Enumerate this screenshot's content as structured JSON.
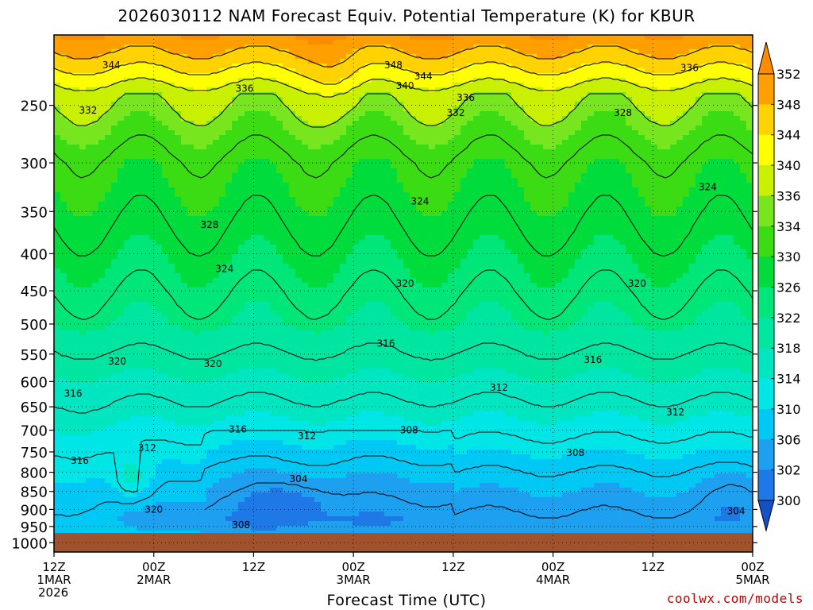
{
  "title": "2026030112 NAM Forecast Equiv. Potential Temperature (K) for KBUR",
  "credit": "coolwx.com/models",
  "chart_data": {
    "type": "heatmap",
    "title": "2026030112 NAM Forecast Equiv. Potential Temperature (K) for KBUR",
    "xlabel": "Forecast Time (UTC)",
    "ylabel": "",
    "x_ticks": [
      {
        "hour": 0,
        "lines": [
          "12Z",
          "1MAR",
          "2026"
        ]
      },
      {
        "hour": 12,
        "lines": [
          "00Z",
          "2MAR"
        ]
      },
      {
        "hour": 24,
        "lines": [
          "12Z"
        ]
      },
      {
        "hour": 36,
        "lines": [
          "00Z",
          "3MAR"
        ]
      },
      {
        "hour": 48,
        "lines": [
          "12Z"
        ]
      },
      {
        "hour": 60,
        "lines": [
          "00Z",
          "4MAR"
        ]
      },
      {
        "hour": 72,
        "lines": [
          "12Z"
        ]
      },
      {
        "hour": 84,
        "lines": [
          "00Z",
          "5MAR"
        ]
      }
    ],
    "xlim": [
      0,
      84
    ],
    "y_ticks": [
      250,
      300,
      350,
      400,
      450,
      500,
      550,
      600,
      650,
      700,
      750,
      800,
      850,
      900,
      950,
      1000
    ],
    "ylim": [
      200,
      1030
    ],
    "y_scale": "log",
    "grid": true,
    "surface_pressure_hpa": 970,
    "colorbar": {
      "ticks": [
        300,
        302,
        306,
        310,
        314,
        318,
        322,
        326,
        330,
        334,
        336,
        340,
        344,
        348,
        352
      ],
      "bins": [
        {
          "min": 298,
          "max": 302,
          "color": "#1e78e6"
        },
        {
          "min": 302,
          "max": 306,
          "color": "#1ea0f0"
        },
        {
          "min": 306,
          "max": 310,
          "color": "#00c8f5"
        },
        {
          "min": 310,
          "max": 314,
          "color": "#00e6e6"
        },
        {
          "min": 314,
          "max": 318,
          "color": "#00e6c0"
        },
        {
          "min": 318,
          "max": 322,
          "color": "#00e6a0"
        },
        {
          "min": 322,
          "max": 326,
          "color": "#00e678"
        },
        {
          "min": 326,
          "max": 330,
          "color": "#00dc3c"
        },
        {
          "min": 330,
          "max": 334,
          "color": "#3cdc14"
        },
        {
          "min": 334,
          "max": 336,
          "color": "#78e61e"
        },
        {
          "min": 336,
          "max": 340,
          "color": "#c8f000"
        },
        {
          "min": 340,
          "max": 344,
          "color": "#ffff00"
        },
        {
          "min": 344,
          "max": 348,
          "color": "#ffd200"
        },
        {
          "min": 348,
          "max": 352,
          "color": "#ffa000"
        }
      ],
      "below_color": "#1450c8",
      "above_color": "#ff8c00"
    },
    "contour_levels_k": [
      304,
      308,
      312,
      316,
      320,
      324,
      328,
      332,
      336,
      340,
      344,
      348
    ],
    "contour_labels": [
      {
        "hour": 6.9,
        "p": 220,
        "v": "344"
      },
      {
        "hour": 40.8,
        "p": 220,
        "v": "348"
      },
      {
        "hour": 44.4,
        "p": 228,
        "v": "344"
      },
      {
        "hour": 42.2,
        "p": 235,
        "v": "340"
      },
      {
        "hour": 22.9,
        "p": 237,
        "v": "336"
      },
      {
        "hour": 4.1,
        "p": 254,
        "v": "332"
      },
      {
        "hour": 49.5,
        "p": 244,
        "v": "336"
      },
      {
        "hour": 48.3,
        "p": 256,
        "v": "332"
      },
      {
        "hour": 68.4,
        "p": 256,
        "v": "328"
      },
      {
        "hour": 76.4,
        "p": 222,
        "v": "336"
      },
      {
        "hour": 78.6,
        "p": 324,
        "v": "324"
      },
      {
        "hour": 44.0,
        "p": 339,
        "v": "324"
      },
      {
        "hour": 18.7,
        "p": 365,
        "v": "328"
      },
      {
        "hour": 20.5,
        "p": 420,
        "v": "324"
      },
      {
        "hour": 42.2,
        "p": 440,
        "v": "320"
      },
      {
        "hour": 70.1,
        "p": 440,
        "v": "320"
      },
      {
        "hour": 39.9,
        "p": 532,
        "v": "316"
      },
      {
        "hour": 64.8,
        "p": 560,
        "v": "316"
      },
      {
        "hour": 7.6,
        "p": 563,
        "v": "320"
      },
      {
        "hour": 19.1,
        "p": 567,
        "v": "320"
      },
      {
        "hour": 2.3,
        "p": 623,
        "v": "316"
      },
      {
        "hour": 53.5,
        "p": 612,
        "v": "312"
      },
      {
        "hour": 74.7,
        "p": 661,
        "v": "312"
      },
      {
        "hour": 22.1,
        "p": 698,
        "v": "316"
      },
      {
        "hour": 30.4,
        "p": 713,
        "v": "312"
      },
      {
        "hour": 42.7,
        "p": 700,
        "v": "308"
      },
      {
        "hour": 11.2,
        "p": 741,
        "v": "312"
      },
      {
        "hour": 3.1,
        "p": 771,
        "v": "316"
      },
      {
        "hour": 62.7,
        "p": 752,
        "v": "308"
      },
      {
        "hour": 29.4,
        "p": 817,
        "v": "304"
      },
      {
        "hour": 12.0,
        "p": 900,
        "v": "320"
      },
      {
        "hour": 82.0,
        "p": 905,
        "v": "304"
      },
      {
        "hour": 22.5,
        "p": 945,
        "v": "308"
      }
    ]
  }
}
